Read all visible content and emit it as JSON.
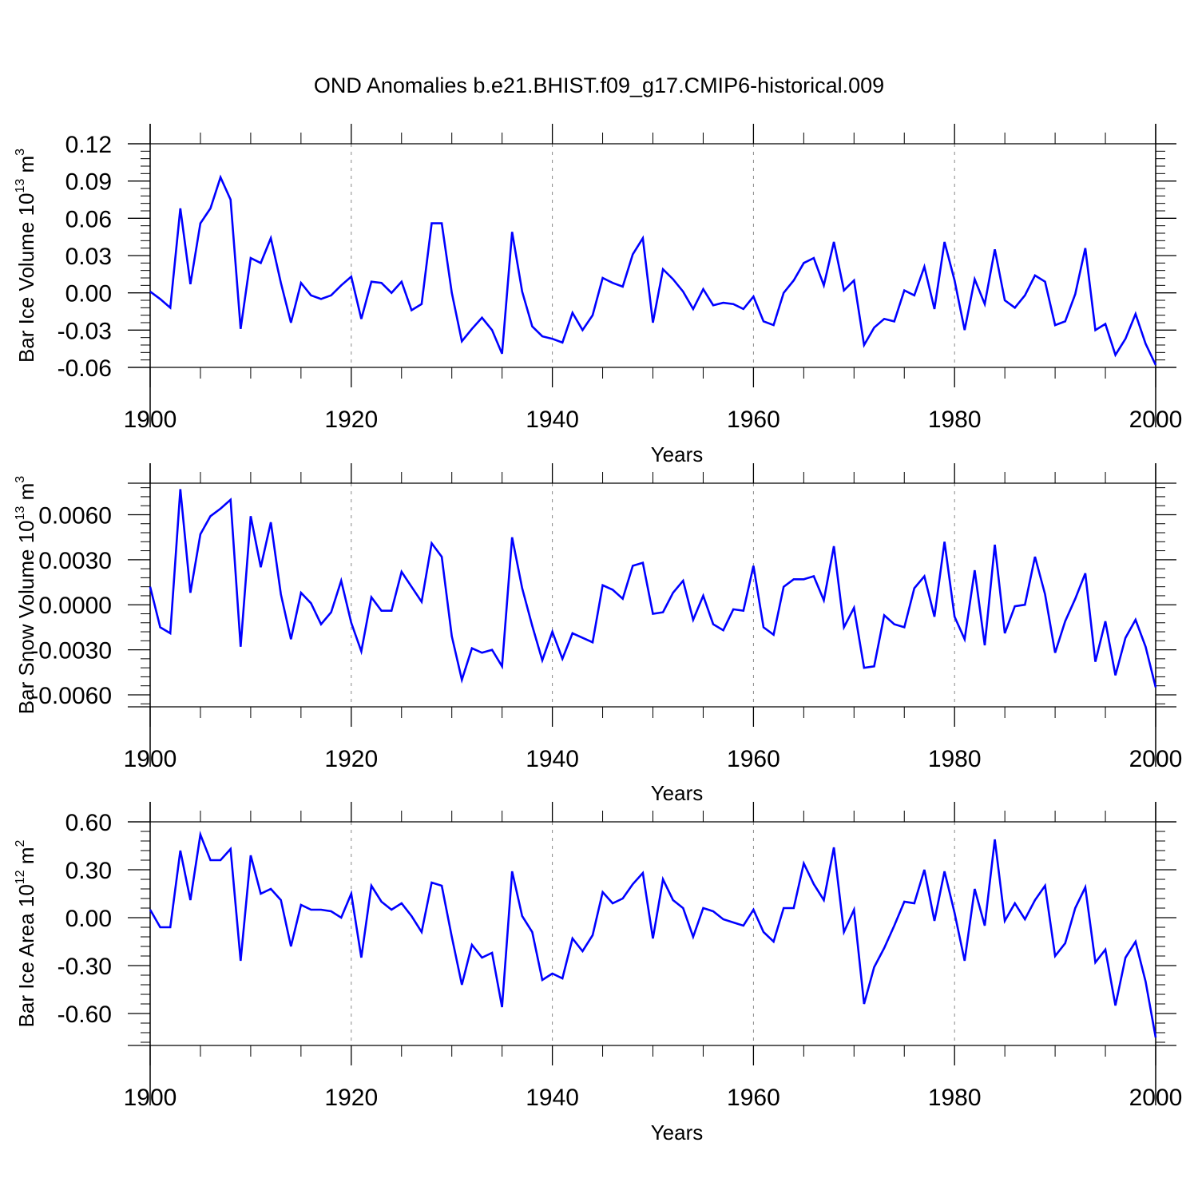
{
  "title": "OND Anomalies b.e21.BHIST.f09_g17.CMIP6-historical.009",
  "colors": {
    "series": "#0000ff",
    "axis": "#000000",
    "grid": "#888888"
  },
  "chart_data": [
    {
      "type": "line",
      "xlabel": "Years",
      "ylabel": {
        "text": "Bar Ice Volume 10",
        "exp": "13",
        "unit": " m",
        "unit_exp": "3"
      },
      "xlim": [
        1900,
        2000
      ],
      "ylim": [
        -0.06,
        0.12
      ],
      "yticks": [
        -0.06,
        -0.03,
        0.0,
        0.03,
        0.06,
        0.09,
        0.12
      ],
      "ytick_labels": [
        "-0.06",
        "-0.03",
        "0.00",
        "0.03",
        "0.06",
        "0.09",
        "0.12"
      ],
      "xticks": [
        1900,
        1920,
        1940,
        1960,
        1980,
        2000
      ],
      "xtick_labels": [
        "1900",
        "1920",
        "1940",
        "1960",
        "1980",
        "2000"
      ],
      "grid_x": [
        1920,
        1940,
        1960,
        1980
      ],
      "x": [
        1900,
        1901,
        1902,
        1903,
        1904,
        1905,
        1906,
        1907,
        1908,
        1909,
        1910,
        1911,
        1912,
        1913,
        1914,
        1915,
        1916,
        1917,
        1918,
        1919,
        1920,
        1921,
        1922,
        1923,
        1924,
        1925,
        1926,
        1927,
        1928,
        1929,
        1930,
        1931,
        1932,
        1933,
        1934,
        1935,
        1936,
        1937,
        1938,
        1939,
        1940,
        1941,
        1942,
        1943,
        1944,
        1945,
        1946,
        1947,
        1948,
        1949,
        1950,
        1951,
        1952,
        1953,
        1954,
        1955,
        1956,
        1957,
        1958,
        1959,
        1960,
        1961,
        1962,
        1963,
        1964,
        1965,
        1966,
        1967,
        1968,
        1969,
        1970,
        1971,
        1972,
        1973,
        1974,
        1975,
        1976,
        1977,
        1978,
        1979,
        1980,
        1981,
        1982,
        1983,
        1984,
        1985,
        1986,
        1987,
        1988,
        1989,
        1990,
        1991,
        1992,
        1993,
        1994,
        1995,
        1996,
        1997,
        1998,
        1999,
        2000
      ],
      "y": [
        0.001,
        -0.005,
        -0.012,
        0.068,
        0.007,
        0.056,
        0.068,
        0.093,
        0.075,
        -0.029,
        0.028,
        0.024,
        0.044,
        0.008,
        -0.024,
        0.008,
        -0.002,
        -0.005,
        -0.002,
        0.006,
        0.013,
        -0.021,
        0.009,
        0.008,
        0.0,
        0.009,
        -0.014,
        -0.009,
        0.056,
        0.056,
        0.0,
        -0.039,
        -0.029,
        -0.02,
        -0.03,
        -0.049,
        0.049,
        0.001,
        -0.027,
        -0.035,
        -0.037,
        -0.04,
        -0.016,
        -0.03,
        -0.018,
        0.012,
        0.008,
        0.005,
        0.031,
        0.044,
        -0.024,
        0.019,
        0.011,
        0.001,
        -0.013,
        0.003,
        -0.01,
        -0.008,
        -0.009,
        -0.013,
        -0.003,
        -0.023,
        -0.026,
        0.0,
        0.01,
        0.024,
        0.028,
        0.006,
        0.041,
        0.002,
        0.01,
        -0.042,
        -0.028,
        -0.021,
        -0.023,
        0.002,
        -0.002,
        0.021,
        -0.013,
        0.041,
        0.01,
        -0.03,
        0.011,
        -0.009,
        0.035,
        -0.006,
        -0.012,
        -0.002,
        0.014,
        0.009,
        -0.026,
        -0.023,
        -0.001,
        0.036,
        -0.03,
        -0.025,
        -0.05,
        -0.037,
        -0.017,
        -0.041,
        -0.058
      ]
    },
    {
      "type": "line",
      "xlabel": "Years",
      "ylabel": {
        "text": "Bar Snow Volume 10",
        "exp": "13",
        "unit": " m",
        "unit_exp": "3"
      },
      "xlim": [
        1900,
        2000
      ],
      "ylim": [
        -0.0068,
        0.0081
      ],
      "yticks": [
        -0.006,
        -0.003,
        0.0,
        0.003,
        0.006
      ],
      "ytick_labels": [
        "-0.0060",
        "-0.0030",
        "0.0000",
        "0.0030",
        "0.0060"
      ],
      "xticks": [
        1900,
        1920,
        1940,
        1960,
        1980,
        2000
      ],
      "xtick_labels": [
        "1900",
        "1920",
        "1940",
        "1960",
        "1980",
        "2000"
      ],
      "grid_x": [
        1920,
        1940,
        1960,
        1980
      ],
      "x": [
        1900,
        1901,
        1902,
        1903,
        1904,
        1905,
        1906,
        1907,
        1908,
        1909,
        1910,
        1911,
        1912,
        1913,
        1914,
        1915,
        1916,
        1917,
        1918,
        1919,
        1920,
        1921,
        1922,
        1923,
        1924,
        1925,
        1926,
        1927,
        1928,
        1929,
        1930,
        1931,
        1932,
        1933,
        1934,
        1935,
        1936,
        1937,
        1938,
        1939,
        1940,
        1941,
        1942,
        1943,
        1944,
        1945,
        1946,
        1947,
        1948,
        1949,
        1950,
        1951,
        1952,
        1953,
        1954,
        1955,
        1956,
        1957,
        1958,
        1959,
        1960,
        1961,
        1962,
        1963,
        1964,
        1965,
        1966,
        1967,
        1968,
        1969,
        1970,
        1971,
        1972,
        1973,
        1974,
        1975,
        1976,
        1977,
        1978,
        1979,
        1980,
        1981,
        1982,
        1983,
        1984,
        1985,
        1986,
        1987,
        1988,
        1989,
        1990,
        1991,
        1992,
        1993,
        1994,
        1995,
        1996,
        1997,
        1998,
        1999,
        2000
      ],
      "y": [
        0.0012,
        -0.0015,
        -0.0019,
        0.0077,
        0.0008,
        0.0047,
        0.0059,
        0.0064,
        0.007,
        -0.0028,
        0.0059,
        0.0025,
        0.0055,
        0.0007,
        -0.0023,
        0.0008,
        0.0001,
        -0.0013,
        -0.0005,
        0.0016,
        -0.0012,
        -0.0031,
        0.0005,
        -0.0004,
        -0.0004,
        0.0022,
        0.0012,
        0.0002,
        0.0041,
        0.0032,
        -0.0021,
        -0.005,
        -0.0029,
        -0.0032,
        -0.003,
        -0.0041,
        0.0045,
        0.0011,
        -0.0014,
        -0.0037,
        -0.0018,
        -0.0036,
        -0.0019,
        -0.0022,
        -0.0025,
        0.0013,
        0.001,
        0.0004,
        0.0026,
        0.0028,
        -0.0006,
        -0.0005,
        0.0008,
        0.0016,
        -0.001,
        0.0006,
        -0.0013,
        -0.0017,
        -0.0003,
        -0.0004,
        0.0026,
        -0.0015,
        -0.002,
        0.0012,
        0.0017,
        0.0017,
        0.0019,
        0.0003,
        0.0039,
        -0.0015,
        -0.0002,
        -0.0042,
        -0.0041,
        -0.0007,
        -0.0013,
        -0.0015,
        0.0011,
        0.0019,
        -0.0008,
        0.0042,
        -0.0008,
        -0.0023,
        0.0023,
        -0.0027,
        0.004,
        -0.0019,
        -0.0001,
        0.0,
        0.0032,
        0.0007,
        -0.0032,
        -0.0011,
        0.0004,
        0.0021,
        -0.0038,
        -0.0011,
        -0.0047,
        -0.0022,
        -0.001,
        -0.0028,
        -0.0055
      ]
    },
    {
      "type": "line",
      "xlabel": "Years",
      "ylabel": {
        "text": "Bar Ice Area 10",
        "exp": "12",
        "unit": " m",
        "unit_exp": "2"
      },
      "xlim": [
        1900,
        2000
      ],
      "ylim": [
        -0.8,
        0.6
      ],
      "yticks": [
        -0.6,
        -0.3,
        0.0,
        0.3,
        0.6
      ],
      "ytick_labels": [
        "-0.60",
        "-0.30",
        "0.00",
        "0.30",
        "0.60"
      ],
      "xticks": [
        1900,
        1920,
        1940,
        1960,
        1980,
        2000
      ],
      "xtick_labels": [
        "1900",
        "1920",
        "1940",
        "1960",
        "1980",
        "2000"
      ],
      "grid_x": [
        1920,
        1940,
        1960,
        1980
      ],
      "x": [
        1900,
        1901,
        1902,
        1903,
        1904,
        1905,
        1906,
        1907,
        1908,
        1909,
        1910,
        1911,
        1912,
        1913,
        1914,
        1915,
        1916,
        1917,
        1918,
        1919,
        1920,
        1921,
        1922,
        1923,
        1924,
        1925,
        1926,
        1927,
        1928,
        1929,
        1930,
        1931,
        1932,
        1933,
        1934,
        1935,
        1936,
        1937,
        1938,
        1939,
        1940,
        1941,
        1942,
        1943,
        1944,
        1945,
        1946,
        1947,
        1948,
        1949,
        1950,
        1951,
        1952,
        1953,
        1954,
        1955,
        1956,
        1957,
        1958,
        1959,
        1960,
        1961,
        1962,
        1963,
        1964,
        1965,
        1966,
        1967,
        1968,
        1969,
        1970,
        1971,
        1972,
        1973,
        1974,
        1975,
        1976,
        1977,
        1978,
        1979,
        1980,
        1981,
        1982,
        1983,
        1984,
        1985,
        1986,
        1987,
        1988,
        1989,
        1990,
        1991,
        1992,
        1993,
        1994,
        1995,
        1996,
        1997,
        1998,
        1999,
        2000
      ],
      "y": [
        0.05,
        -0.06,
        -0.06,
        0.42,
        0.11,
        0.52,
        0.36,
        0.36,
        0.43,
        -0.27,
        0.39,
        0.15,
        0.18,
        0.11,
        -0.18,
        0.08,
        0.05,
        0.05,
        0.04,
        0.0,
        0.15,
        -0.25,
        0.2,
        0.1,
        0.05,
        0.09,
        0.01,
        -0.09,
        0.22,
        0.2,
        -0.12,
        -0.42,
        -0.17,
        -0.25,
        -0.22,
        -0.56,
        0.29,
        0.01,
        -0.09,
        -0.39,
        -0.35,
        -0.38,
        -0.13,
        -0.21,
        -0.11,
        0.16,
        0.09,
        0.12,
        0.21,
        0.28,
        -0.13,
        0.24,
        0.11,
        0.06,
        -0.12,
        0.06,
        0.04,
        -0.01,
        -0.03,
        -0.05,
        0.05,
        -0.09,
        -0.15,
        0.06,
        0.06,
        0.34,
        0.21,
        0.11,
        0.44,
        -0.09,
        0.05,
        -0.54,
        -0.31,
        -0.19,
        -0.05,
        0.1,
        0.09,
        0.3,
        -0.02,
        0.29,
        0.03,
        -0.27,
        0.18,
        -0.05,
        0.49,
        -0.02,
        0.09,
        -0.01,
        0.11,
        0.2,
        -0.24,
        -0.16,
        0.06,
        0.19,
        -0.28,
        -0.2,
        -0.55,
        -0.25,
        -0.15,
        -0.4,
        -0.75
      ]
    }
  ]
}
